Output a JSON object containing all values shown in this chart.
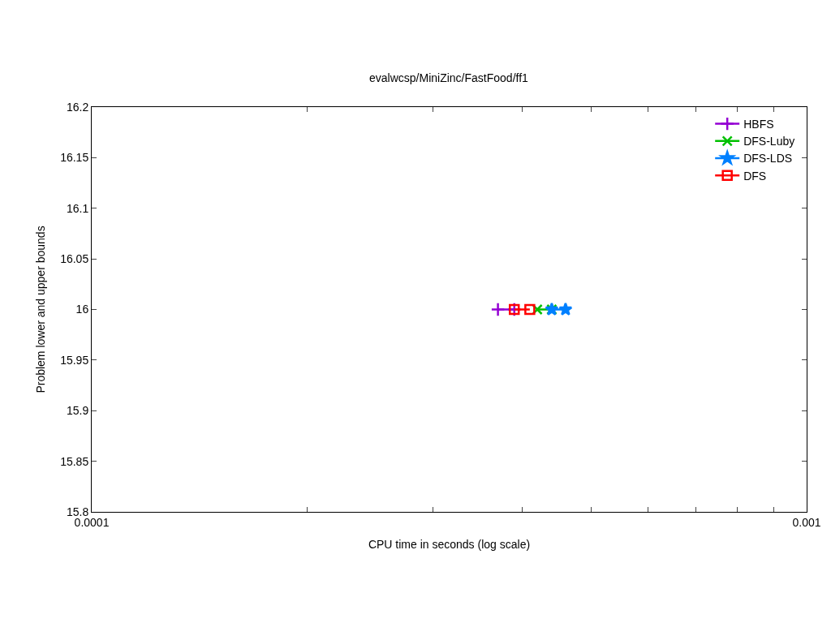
{
  "chart_data": {
    "type": "line",
    "title": "evalwcsp/MiniZinc/FastFood/ff1",
    "xlabel": "CPU time in seconds (log scale)",
    "ylabel": "Problem lower and upper bounds",
    "log": "x",
    "xlim": [
      0.0001,
      0.001
    ],
    "xticks": [
      0.0001,
      {
        "value": 0.0002,
        "label": null
      },
      {
        "value": 0.0003,
        "label": null
      },
      {
        "value": 0.0004,
        "label": null
      },
      {
        "value": 0.0005,
        "label": null
      },
      {
        "value": 0.0006,
        "label": null
      },
      {
        "value": 0.0007,
        "label": null
      },
      {
        "value": 0.0008,
        "label": null
      },
      {
        "value": 0.0009,
        "label": null
      },
      0.001
    ],
    "ylim": [
      15.8,
      16.2
    ],
    "yticks": [
      15.8,
      15.85,
      15.9,
      15.95,
      16,
      16.05,
      16.1,
      16.15,
      16.2
    ],
    "legend": "top right",
    "line_style": "solid",
    "series": [
      {
        "name": "HBFS",
        "color": "#9400d3",
        "marker": "cross",
        "x": [
          0.00037,
          0.00039
        ],
        "values": [
          16,
          16
        ]
      },
      {
        "name": "DFS-Luby",
        "color": "#00c000",
        "marker": "x",
        "x": [
          0.00042,
          0.00044
        ],
        "values": [
          16,
          16
        ]
      },
      {
        "name": "DFS-LDS",
        "color": "#0080ff",
        "marker": "star",
        "x": [
          0.00044,
          0.00046
        ],
        "values": [
          16,
          16
        ]
      },
      {
        "name": "DFS",
        "color": "#ff0000",
        "marker": "square",
        "x": [
          0.00039,
          0.00041
        ],
        "values": [
          16,
          16
        ]
      }
    ]
  }
}
